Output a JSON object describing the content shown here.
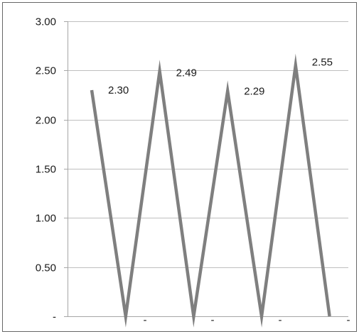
{
  "chart_data": {
    "type": "line",
    "x": [
      1,
      2,
      3,
      4,
      5,
      6,
      7,
      8
    ],
    "series": [
      {
        "values": [
          2.3,
          0,
          2.49,
          0,
          2.29,
          0,
          2.55,
          0
        ],
        "color": "#7f7f7f"
      }
    ],
    "data_labels": [
      "2.30",
      "",
      "2.49",
      "",
      "2.29",
      "",
      "2.55",
      ""
    ],
    "yticks": [
      {
        "value": 0,
        "label": "-"
      },
      {
        "value": 0.5,
        "label": "0.50"
      },
      {
        "value": 1.0,
        "label": "1.00"
      },
      {
        "value": 1.5,
        "label": "1.50"
      },
      {
        "value": 2.0,
        "label": "2.00"
      },
      {
        "value": 2.5,
        "label": "2.50"
      },
      {
        "value": 3.0,
        "label": "3.00"
      }
    ],
    "xtick_labels": [
      "-",
      "-",
      "-",
      "-"
    ],
    "ylim": [
      0,
      3
    ],
    "grid": true,
    "legend": "none",
    "title": "",
    "xlabel": "",
    "ylabel": "",
    "gridline_color": "#bfbfbf",
    "axis_color": "#a6a6a6",
    "border_color": "#666666"
  }
}
